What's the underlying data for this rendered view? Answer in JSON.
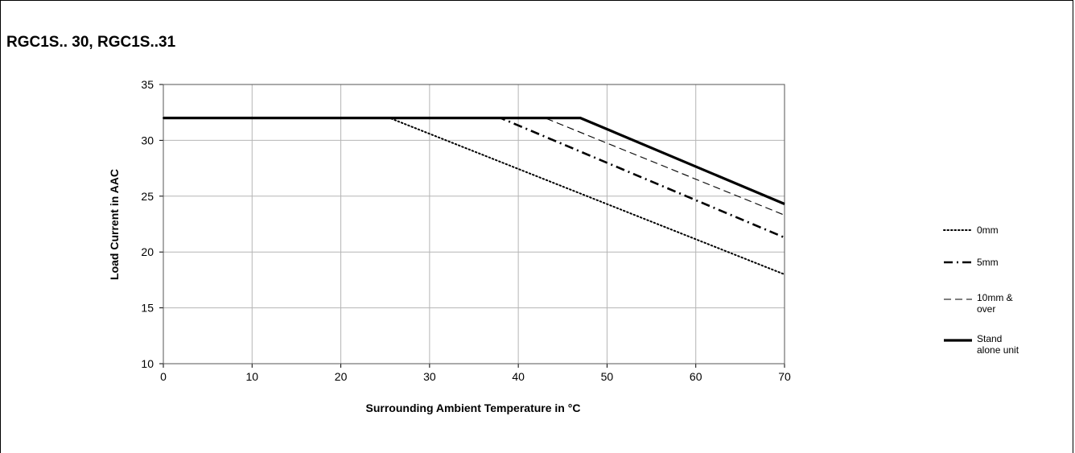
{
  "page": {
    "title": "RGC1S.. 30, RGC1S..31"
  },
  "chart_data": {
    "type": "line",
    "title": "RGC1S.. 30, RGC1S..31",
    "xlabel": "Surrounding Ambient Temperature in °C",
    "ylabel": "Load Current in AAC",
    "xlim": [
      0,
      70
    ],
    "ylim": [
      10,
      35
    ],
    "xticks": [
      0,
      10,
      20,
      30,
      40,
      50,
      60,
      70
    ],
    "yticks": [
      10,
      15,
      20,
      25,
      30,
      35
    ],
    "grid": true,
    "legend_position": "right",
    "series": [
      {
        "name": "0mm",
        "style": "dotted",
        "x": [
          0,
          25.5,
          70
        ],
        "y": [
          32,
          32,
          18
        ]
      },
      {
        "name": "5mm",
        "style": "dashdot",
        "x": [
          0,
          38,
          70
        ],
        "y": [
          32,
          32,
          21.3
        ]
      },
      {
        "name": "10mm & over",
        "style": "dashed",
        "x": [
          0,
          43,
          70
        ],
        "y": [
          32,
          32,
          23.3
        ]
      },
      {
        "name": "Stand alone unit",
        "style": "solid",
        "x": [
          0,
          47,
          70
        ],
        "y": [
          32,
          32,
          24.3
        ]
      }
    ]
  }
}
